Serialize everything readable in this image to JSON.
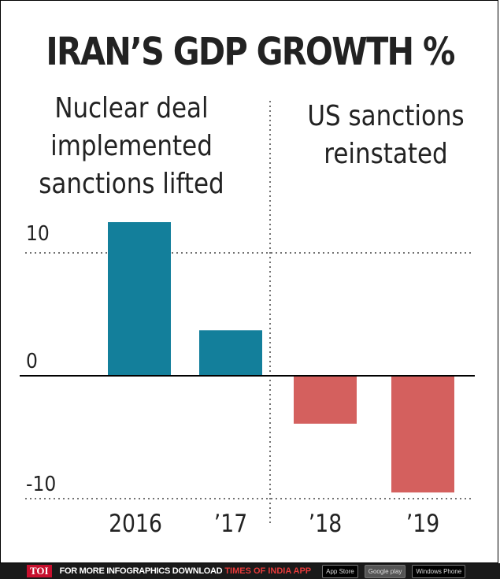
{
  "title": "IRAN’S GDP GROWTH %",
  "annotations": {
    "left": [
      "Nuclear deal",
      "implemented",
      "sanctions lifted"
    ],
    "right": [
      "US sanctions",
      "reinstated"
    ]
  },
  "chart_data": {
    "type": "bar",
    "title": "IRAN’S GDP GROWTH %",
    "xlabel": "",
    "ylabel": "",
    "categories": [
      "2016",
      "’17",
      "’18",
      "’19"
    ],
    "values": [
      12.5,
      3.7,
      -3.9,
      -9.5
    ],
    "y_ticks": [
      10,
      0,
      -10
    ],
    "y_tick_labels": [
      "10",
      "0",
      "-10"
    ],
    "ylim": [
      -11,
      13
    ],
    "grid": "dotted horizontal at 10 and -10",
    "divider_after_category": 1,
    "colors": {
      "positive": "#137f9b",
      "negative": "#d4605e",
      "axis": "#000000",
      "grid": "#444444"
    }
  },
  "footer": {
    "logo": "TOI",
    "text": "FOR MORE  INFOGRAPHICS DOWNLOAD",
    "brand": "TIMES OF INDIA  APP",
    "badges": [
      "App Store",
      "Google play",
      "Windows Phone"
    ]
  }
}
